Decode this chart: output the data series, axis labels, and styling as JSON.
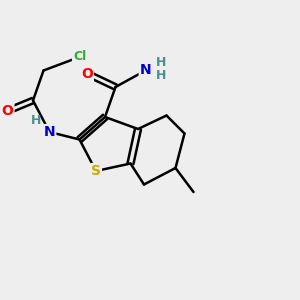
{
  "bg_color": "#eeeeee",
  "bond_color": "#000000",
  "bond_width": 1.8,
  "atom_colors": {
    "O": "#ff0000",
    "N": "#0000cc",
    "S": "#ccaa00",
    "Cl": "#33aa33",
    "H": "#4a9090",
    "C": "#000000"
  },
  "font_size_atom": 10,
  "font_size_H": 9,
  "font_size_Cl": 9
}
